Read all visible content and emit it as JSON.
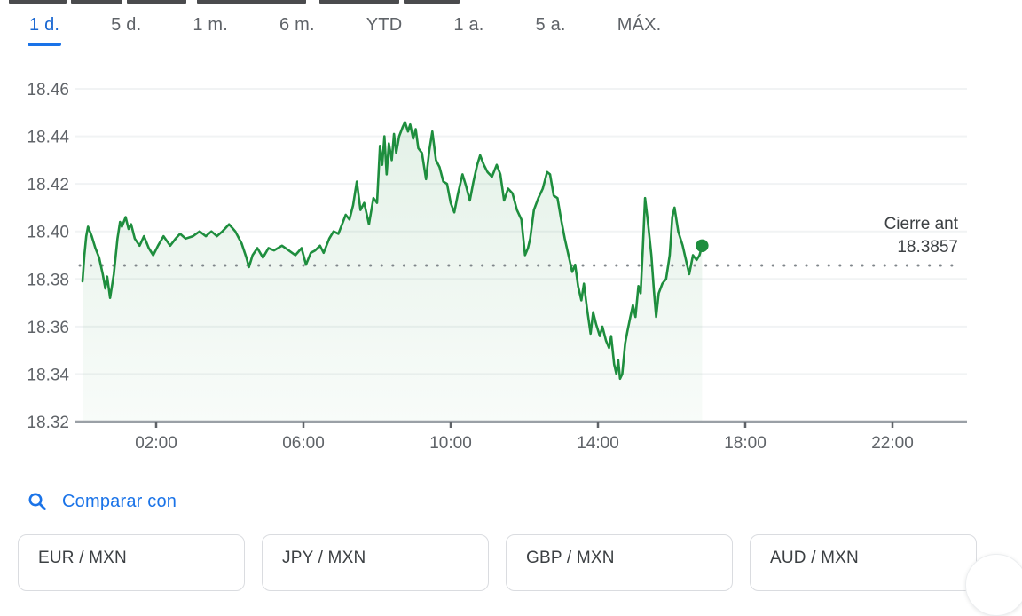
{
  "tabs": {
    "items": [
      {
        "label": "1 d.",
        "selected": true
      },
      {
        "label": "5 d.",
        "selected": false
      },
      {
        "label": "1 m.",
        "selected": false
      },
      {
        "label": "6 m.",
        "selected": false
      },
      {
        "label": "YTD",
        "selected": false
      },
      {
        "label": "1 a.",
        "selected": false
      },
      {
        "label": "5 a.",
        "selected": false
      },
      {
        "label": "MÁX.",
        "selected": false
      }
    ]
  },
  "chart_data": {
    "type": "line",
    "title": "",
    "xlabel": "",
    "ylabel": "",
    "x_unit": "hour_of_day",
    "xlim_hours": [
      0,
      24
    ],
    "ylim": [
      18.32,
      18.47
    ],
    "grid": "horizontal",
    "y_ticks": [
      "18.46",
      "18.44",
      "18.42",
      "18.40",
      "18.38",
      "18.36",
      "18.34",
      "18.32"
    ],
    "y_tick_values": [
      18.46,
      18.44,
      18.42,
      18.4,
      18.38,
      18.36,
      18.34,
      18.32
    ],
    "x_ticks": [
      {
        "hour": 2,
        "label": "02:00"
      },
      {
        "hour": 6,
        "label": "06:00"
      },
      {
        "hour": 10,
        "label": "10:00"
      },
      {
        "hour": 14,
        "label": "14:00"
      },
      {
        "hour": 18,
        "label": "18:00"
      },
      {
        "hour": 22,
        "label": "22:00"
      }
    ],
    "previous_close": {
      "label": "Cierre ant",
      "value": "18.3857",
      "numeric": 18.3857
    },
    "series": [
      {
        "name": "intraday-price",
        "color": "#1e8e3e",
        "end_dot": true,
        "points": [
          [
            0.0,
            18.379
          ],
          [
            0.05,
            18.39
          ],
          [
            0.1,
            18.398
          ],
          [
            0.15,
            18.402
          ],
          [
            0.25,
            18.398
          ],
          [
            0.35,
            18.393
          ],
          [
            0.45,
            18.389
          ],
          [
            0.55,
            18.382
          ],
          [
            0.62,
            18.376
          ],
          [
            0.67,
            18.381
          ],
          [
            0.75,
            18.372
          ],
          [
            0.85,
            18.382
          ],
          [
            0.95,
            18.397
          ],
          [
            1.02,
            18.404
          ],
          [
            1.07,
            18.402
          ],
          [
            1.17,
            18.406
          ],
          [
            1.25,
            18.401
          ],
          [
            1.32,
            18.403
          ],
          [
            1.42,
            18.397
          ],
          [
            1.55,
            18.394
          ],
          [
            1.67,
            18.398
          ],
          [
            1.8,
            18.393
          ],
          [
            1.92,
            18.39
          ],
          [
            2.05,
            18.394
          ],
          [
            2.2,
            18.398
          ],
          [
            2.38,
            18.394
          ],
          [
            2.53,
            18.397
          ],
          [
            2.65,
            18.399
          ],
          [
            2.8,
            18.397
          ],
          [
            3.0,
            18.398
          ],
          [
            3.18,
            18.4
          ],
          [
            3.35,
            18.398
          ],
          [
            3.5,
            18.4
          ],
          [
            3.65,
            18.398
          ],
          [
            3.8,
            18.4
          ],
          [
            3.98,
            18.403
          ],
          [
            4.15,
            18.4
          ],
          [
            4.32,
            18.395
          ],
          [
            4.45,
            18.389
          ],
          [
            4.52,
            18.385
          ],
          [
            4.62,
            18.39
          ],
          [
            4.75,
            18.393
          ],
          [
            4.9,
            18.389
          ],
          [
            5.05,
            18.393
          ],
          [
            5.2,
            18.392
          ],
          [
            5.42,
            18.394
          ],
          [
            5.6,
            18.392
          ],
          [
            5.78,
            18.39
          ],
          [
            5.95,
            18.393
          ],
          [
            6.07,
            18.386
          ],
          [
            6.2,
            18.391
          ],
          [
            6.32,
            18.392
          ],
          [
            6.45,
            18.394
          ],
          [
            6.55,
            18.391
          ],
          [
            6.7,
            18.397
          ],
          [
            6.82,
            18.4
          ],
          [
            6.95,
            18.399
          ],
          [
            7.05,
            18.403
          ],
          [
            7.15,
            18.407
          ],
          [
            7.25,
            18.405
          ],
          [
            7.35,
            18.411
          ],
          [
            7.45,
            18.421
          ],
          [
            7.55,
            18.409
          ],
          [
            7.65,
            18.412
          ],
          [
            7.78,
            18.403
          ],
          [
            7.9,
            18.414
          ],
          [
            8.0,
            18.412
          ],
          [
            8.08,
            18.436
          ],
          [
            8.14,
            18.428
          ],
          [
            8.2,
            18.44
          ],
          [
            8.26,
            18.424
          ],
          [
            8.32,
            18.437
          ],
          [
            8.4,
            18.43
          ],
          [
            8.46,
            18.441
          ],
          [
            8.52,
            18.433
          ],
          [
            8.6,
            18.44
          ],
          [
            8.7,
            18.444
          ],
          [
            8.76,
            18.446
          ],
          [
            8.84,
            18.442
          ],
          [
            8.9,
            18.445
          ],
          [
            8.98,
            18.439
          ],
          [
            9.05,
            18.443
          ],
          [
            9.12,
            18.435
          ],
          [
            9.22,
            18.433
          ],
          [
            9.33,
            18.422
          ],
          [
            9.42,
            18.434
          ],
          [
            9.5,
            18.442
          ],
          [
            9.6,
            18.43
          ],
          [
            9.7,
            18.427
          ],
          [
            9.8,
            18.421
          ],
          [
            9.9,
            18.42
          ],
          [
            10.0,
            18.412
          ],
          [
            10.1,
            18.408
          ],
          [
            10.2,
            18.416
          ],
          [
            10.32,
            18.424
          ],
          [
            10.42,
            18.419
          ],
          [
            10.52,
            18.413
          ],
          [
            10.62,
            18.421
          ],
          [
            10.72,
            18.428
          ],
          [
            10.8,
            18.432
          ],
          [
            10.9,
            18.428
          ],
          [
            11.0,
            18.425
          ],
          [
            11.12,
            18.423
          ],
          [
            11.25,
            18.428
          ],
          [
            11.35,
            18.424
          ],
          [
            11.45,
            18.413
          ],
          [
            11.56,
            18.418
          ],
          [
            11.68,
            18.416
          ],
          [
            11.8,
            18.409
          ],
          [
            11.92,
            18.405
          ],
          [
            12.02,
            18.39
          ],
          [
            12.1,
            18.393
          ],
          [
            12.16,
            18.397
          ],
          [
            12.26,
            18.409
          ],
          [
            12.38,
            18.414
          ],
          [
            12.5,
            18.418
          ],
          [
            12.62,
            18.425
          ],
          [
            12.7,
            18.424
          ],
          [
            12.8,
            18.415
          ],
          [
            12.9,
            18.414
          ],
          [
            13.0,
            18.405
          ],
          [
            13.1,
            18.397
          ],
          [
            13.2,
            18.39
          ],
          [
            13.3,
            18.383
          ],
          [
            13.38,
            18.386
          ],
          [
            13.46,
            18.377
          ],
          [
            13.55,
            18.371
          ],
          [
            13.62,
            18.378
          ],
          [
            13.7,
            18.368
          ],
          [
            13.8,
            18.357
          ],
          [
            13.87,
            18.366
          ],
          [
            13.95,
            18.361
          ],
          [
            14.05,
            18.356
          ],
          [
            14.12,
            18.36
          ],
          [
            14.22,
            18.354
          ],
          [
            14.3,
            18.351
          ],
          [
            14.36,
            18.356
          ],
          [
            14.44,
            18.344
          ],
          [
            14.5,
            18.34
          ],
          [
            14.55,
            18.346
          ],
          [
            14.6,
            18.338
          ],
          [
            14.66,
            18.34
          ],
          [
            14.74,
            18.353
          ],
          [
            14.8,
            18.358
          ],
          [
            14.88,
            18.364
          ],
          [
            14.95,
            18.369
          ],
          [
            15.02,
            18.364
          ],
          [
            15.1,
            18.377
          ],
          [
            15.16,
            18.374
          ],
          [
            15.22,
            18.393
          ],
          [
            15.28,
            18.414
          ],
          [
            15.35,
            18.405
          ],
          [
            15.45,
            18.39
          ],
          [
            15.52,
            18.375
          ],
          [
            15.58,
            18.364
          ],
          [
            15.65,
            18.374
          ],
          [
            15.75,
            18.378
          ],
          [
            15.85,
            18.38
          ],
          [
            15.95,
            18.39
          ],
          [
            16.02,
            18.406
          ],
          [
            16.08,
            18.41
          ],
          [
            16.18,
            18.4
          ],
          [
            16.3,
            18.394
          ],
          [
            16.42,
            18.386
          ],
          [
            16.48,
            18.382
          ],
          [
            16.58,
            18.39
          ],
          [
            16.68,
            18.388
          ],
          [
            16.76,
            18.39
          ],
          [
            16.83,
            18.394
          ]
        ]
      }
    ],
    "colors": {
      "line_green": "#1e8e3e",
      "fill_green": "#1e8e3e",
      "axis_gray": "#9aa0a6",
      "tick_gray": "#5f6368",
      "grid_gray": "#f1f3f4",
      "dotted_gray": "#80868b",
      "label_gray": "#5f6368",
      "text_dark": "#3c4043"
    }
  },
  "compare": {
    "label": "Comparar con",
    "accent": "#1a73e8",
    "chips": [
      "EUR / MXN",
      "JPY / MXN",
      "GBP / MXN",
      "AUD / MXN"
    ]
  }
}
